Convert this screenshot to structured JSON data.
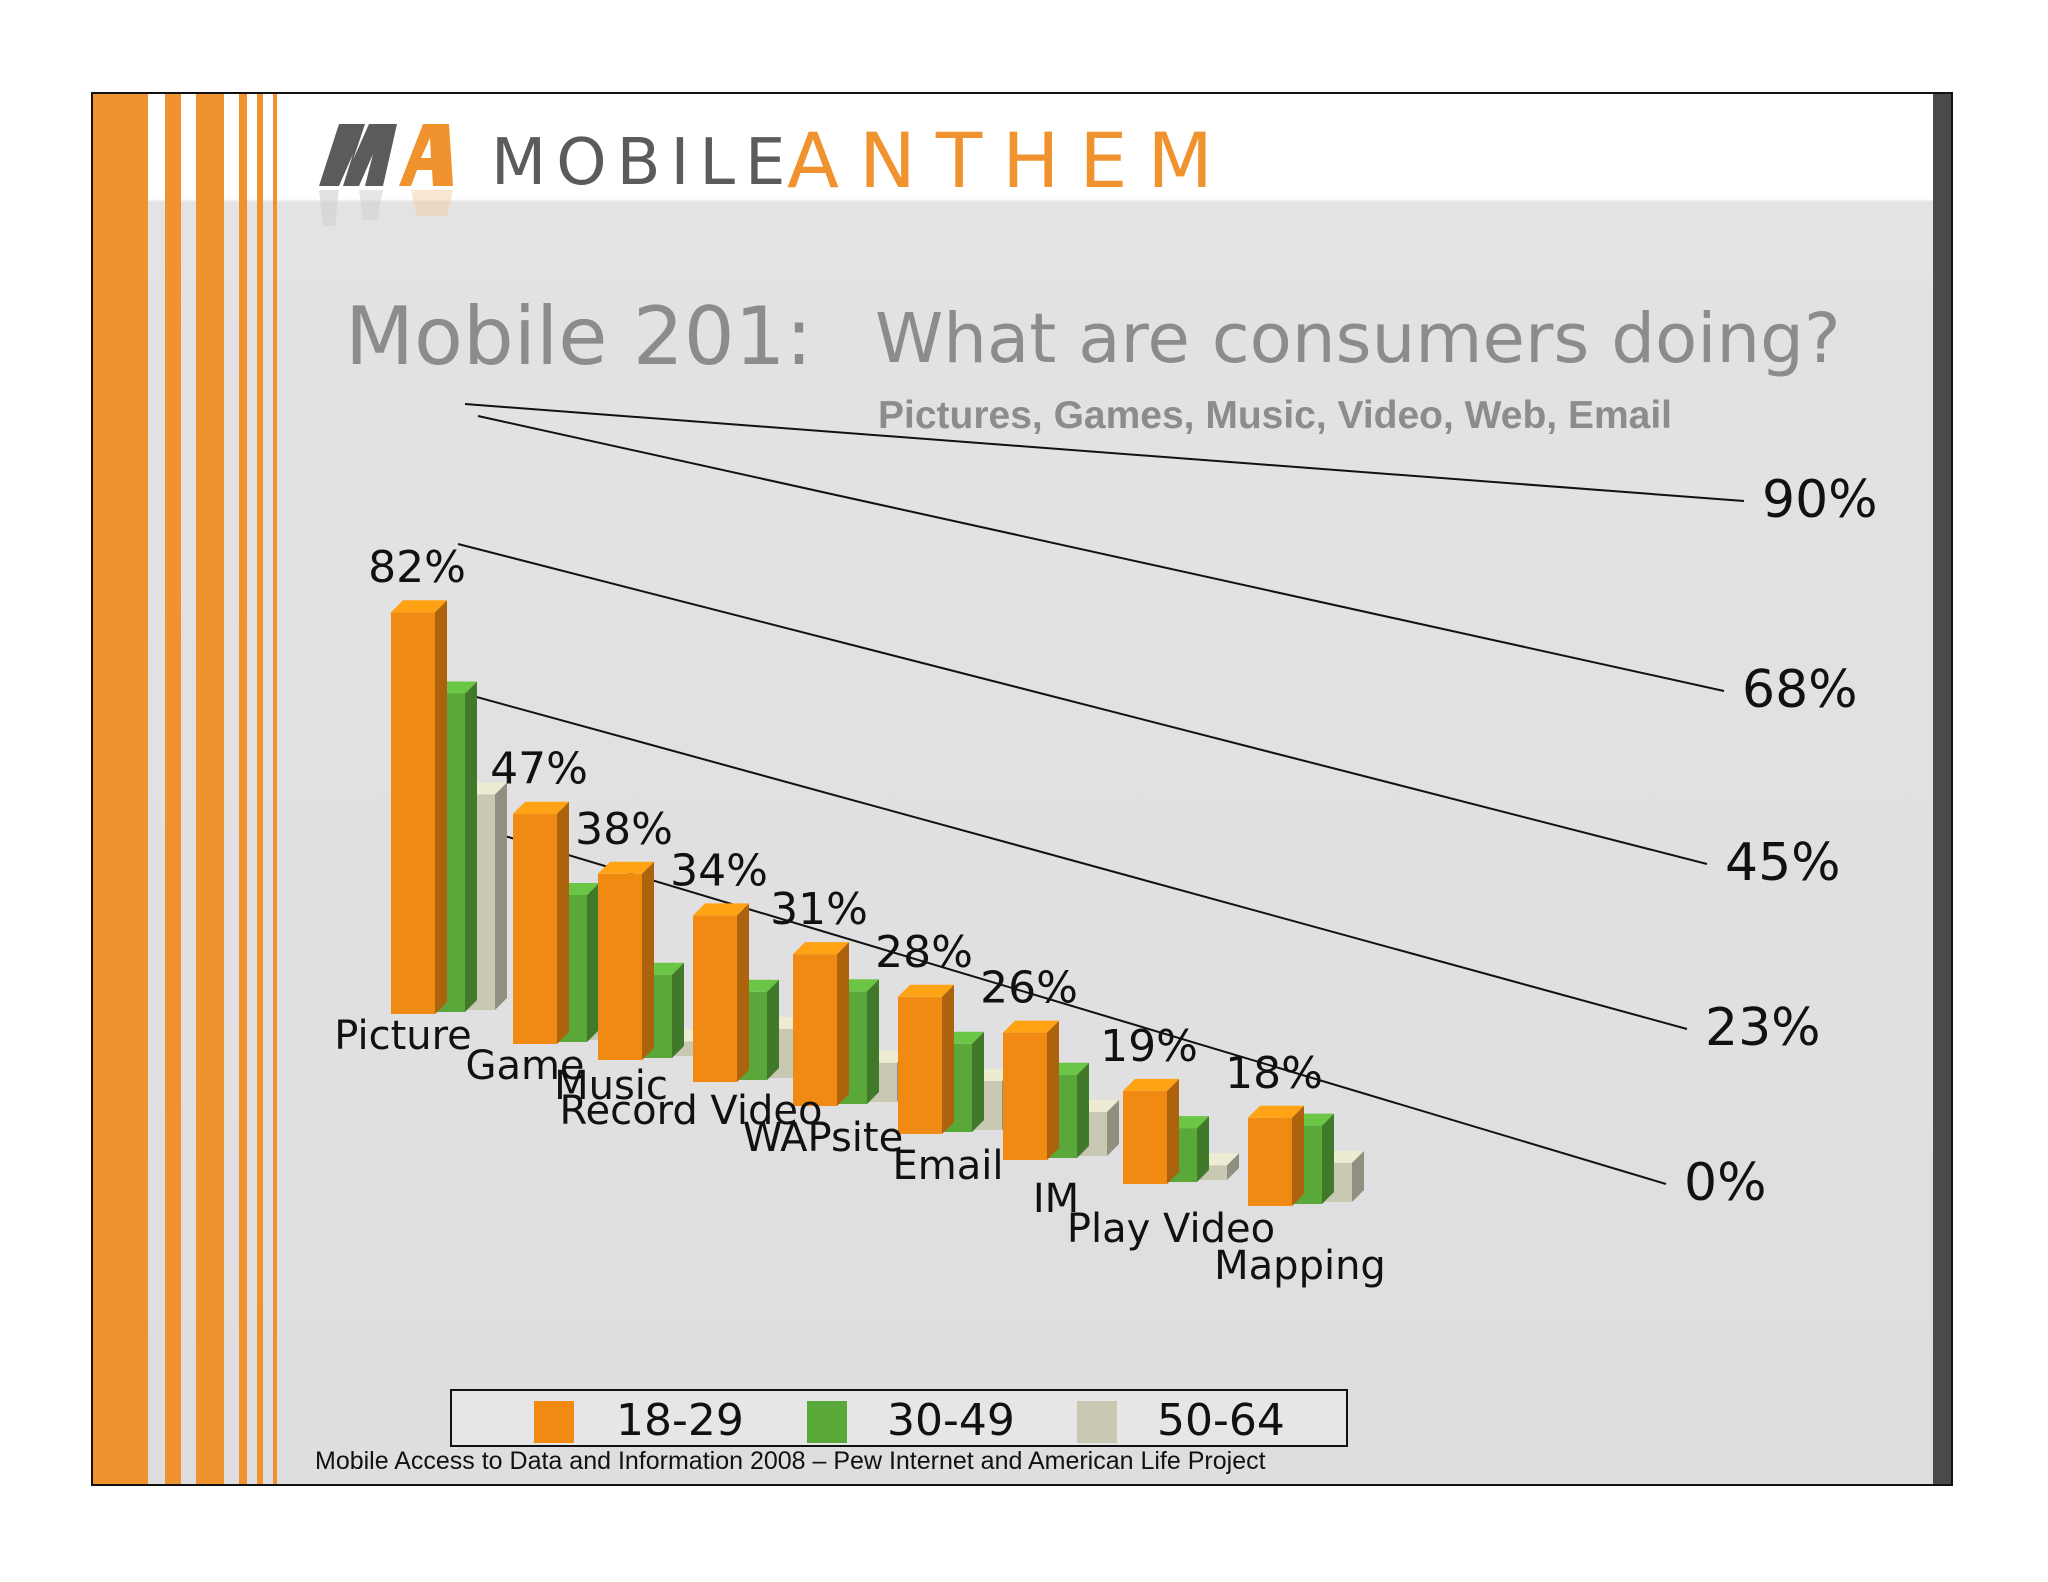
{
  "brand": {
    "word1": "MOBILE",
    "word2": "ANTHEM",
    "logo": "mobile-anthem-logo"
  },
  "title": {
    "part1": "Mobile 201:",
    "part2": "What are consumers doing?"
  },
  "subtitle": "Pictures, Games, Music, Video, Web, Email",
  "footer": "Mobile Access to Data and Information 2008 – Pew Internet and American Life Project",
  "colors": {
    "orange": "#f0922e",
    "bar_orange": "#f08a12",
    "bar_green": "#5aa83a",
    "bar_beige": "#c9c8b2",
    "dark": "#4a4a4d"
  },
  "chart_data": {
    "type": "bar",
    "title": "Mobile 201:  What are consumers doing?",
    "subtitle": "Pictures, Games, Music, Video, Web, Email",
    "categories": [
      "Picture",
      "Game",
      "Music",
      "Record Video",
      "WAPsite",
      "Email",
      "IM",
      "Play Video",
      "Mapping"
    ],
    "series": [
      {
        "name": "18-29",
        "values": [
          82,
          47,
          38,
          34,
          31,
          28,
          26,
          19,
          18
        ]
      },
      {
        "name": "30-49",
        "values": [
          65,
          30,
          17,
          18,
          23,
          18,
          17,
          11,
          16
        ]
      },
      {
        "name": "50-64",
        "values": [
          44,
          11,
          3,
          10,
          8,
          10,
          9,
          3,
          8
        ]
      }
    ],
    "data_labels": [
      "82%",
      "47%",
      "38%",
      "34%",
      "31%",
      "28%",
      "26%",
      "19%",
      "18%"
    ],
    "yticks": [
      "0%",
      "23%",
      "45%",
      "68%",
      "90%"
    ],
    "ylim": [
      0,
      90
    ],
    "grid": true,
    "legend_position": "bottom-left",
    "three_d": true
  }
}
